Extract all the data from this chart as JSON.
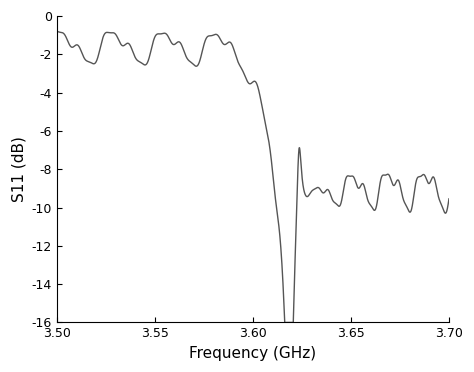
{
  "xlabel": "Frequency (GHz)",
  "ylabel": "S11 (dB)",
  "xlim": [
    3.5,
    3.7
  ],
  "ylim": [
    -16,
    0
  ],
  "xticks": [
    3.5,
    3.55,
    3.6,
    3.65,
    3.7
  ],
  "yticks": [
    0,
    -2,
    -4,
    -6,
    -8,
    -10,
    -12,
    -14,
    -16
  ],
  "line_color": "#555555",
  "line_width": 1.0,
  "background_color": "#ffffff",
  "fig_width": 4.74,
  "fig_height": 3.72,
  "dpi": 100
}
